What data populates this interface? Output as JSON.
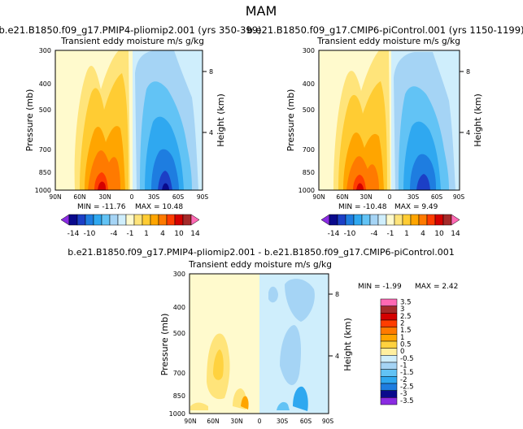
{
  "figure_title": "MAM",
  "chart_data": [
    {
      "type": "heatmap",
      "panel": "left",
      "title": "b.e21.B1850.f09_g17.PMIP4-pliomip2.001  (yrs 350-399)",
      "subtitle": "Transient eddy moisture m/s g/kg",
      "ylabel": "Pressure (mb)",
      "ylabel_right": "Height (km)",
      "x_ticks": [
        "90N",
        "60N",
        "30N",
        "0",
        "30S",
        "60S",
        "90S"
      ],
      "y_ticks": [
        "300",
        "400",
        "500",
        "700",
        "850",
        "1000"
      ],
      "height_ticks": [
        "8",
        "4"
      ],
      "min_label": "MIN = -11.76",
      "max_label": "MAX =  10.48",
      "min": -11.76,
      "max": 10.48,
      "colorbar": {
        "orientation": "horizontal",
        "levels": [
          -14,
          -12,
          -10,
          -8,
          -6,
          -4,
          -2,
          -1,
          0,
          1,
          2,
          4,
          6,
          8,
          10,
          12,
          14
        ],
        "tick_labels": [
          "-14",
          "-10",
          "-4",
          "-1",
          "1",
          "4",
          "10",
          "14"
        ]
      }
    },
    {
      "type": "heatmap",
      "panel": "right",
      "title": "b.e21.B1850.f09_g17.CMIP6-piControl.001  (yrs 1150-1199)",
      "subtitle": "Transient eddy moisture m/s g/kg",
      "ylabel": "Pressure (mb)",
      "ylabel_right": "Height (km)",
      "x_ticks": [
        "90N",
        "60N",
        "30N",
        "0",
        "30S",
        "60S",
        "90S"
      ],
      "y_ticks": [
        "300",
        "400",
        "500",
        "700",
        "850",
        "1000"
      ],
      "height_ticks": [
        "8",
        "4"
      ],
      "min_label": "MIN = -10.48",
      "max_label": "MAX =   9.49",
      "min": -10.48,
      "max": 9.49,
      "colorbar": {
        "orientation": "horizontal",
        "levels": [
          -14,
          -12,
          -10,
          -8,
          -6,
          -4,
          -2,
          -1,
          0,
          1,
          2,
          4,
          6,
          8,
          10,
          12,
          14
        ],
        "tick_labels": [
          "-14",
          "-10",
          "-4",
          "-1",
          "1",
          "4",
          "10",
          "14"
        ]
      }
    },
    {
      "type": "heatmap",
      "panel": "difference",
      "title": "b.e21.B1850.f09_g17.PMIP4-pliomip2.001 - b.e21.B1850.f09_g17.CMIP6-piControl.001",
      "subtitle": "Transient eddy moisture m/s g/kg",
      "ylabel": "Pressure (mb)",
      "ylabel_right": "Height (km)",
      "x_ticks": [
        "90N",
        "60N",
        "30N",
        "0",
        "30S",
        "60S",
        "90S"
      ],
      "y_ticks": [
        "300",
        "400",
        "500",
        "700",
        "850",
        "1000"
      ],
      "height_ticks": [
        "8",
        "4"
      ],
      "min_label": "MIN =  -1.99",
      "max_label": "MAX =   2.42",
      "min": -1.99,
      "max": 2.42,
      "colorbar": {
        "orientation": "vertical",
        "levels": [
          3.5,
          3,
          2.5,
          2,
          1.5,
          1,
          0.5,
          0,
          -0.5,
          -1,
          -1.5,
          -2,
          -2.5,
          -3,
          -3.5
        ],
        "tick_labels": [
          "3.5",
          "3",
          "2.5",
          "2",
          "1.5",
          "1",
          "0.5",
          "0",
          "-0.5",
          "-1",
          "-1.5",
          "-2",
          "-2.5",
          "-3",
          "-3.5"
        ]
      }
    }
  ],
  "palette": {
    "full": [
      "#8a2be2",
      "#0a0a8c",
      "#1c3fc6",
      "#1e7de0",
      "#2fa8f0",
      "#62c3f5",
      "#a5d4f5",
      "#cfeefc",
      "#fffacd",
      "#ffe47a",
      "#ffcc33",
      "#ffa500",
      "#ff7a00",
      "#ff3d00",
      "#d40000",
      "#a52a2a",
      "#ff69b4"
    ],
    "diff": [
      "#ff69b4",
      "#a52a2a",
      "#d40000",
      "#ff3d00",
      "#ff7a00",
      "#ffa500",
      "#ffd23f",
      "#ffefa0",
      "#cfeefc",
      "#a5d4f5",
      "#62c3f5",
      "#2fa8f0",
      "#1e7de0",
      "#0a0a8c",
      "#8a2be2"
    ]
  }
}
